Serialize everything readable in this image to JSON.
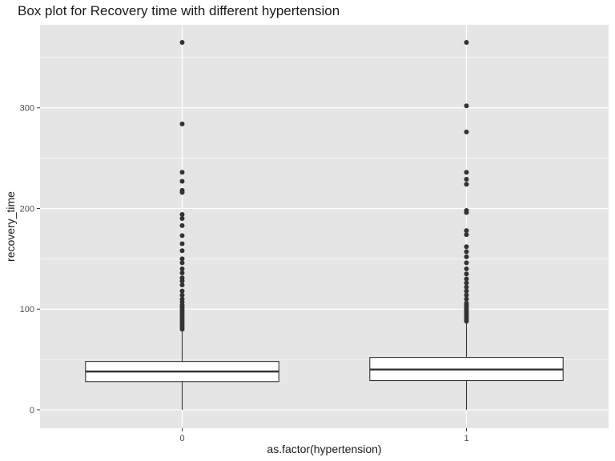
{
  "chart_data": {
    "type": "box",
    "title": "Box plot for Recovery time with different hypertension",
    "xlabel": "as.factor(hypertension)",
    "ylabel": "recovery_time",
    "ylim": [
      -15,
      380
    ],
    "yticks": [
      0,
      100,
      200,
      300
    ],
    "grid": true,
    "legend": "none",
    "colors": {
      "panel": "#e5e5e5",
      "grid": "#ffffff",
      "box_fill": "#ffffff",
      "box_stroke": "#333333",
      "outlier": "#333333"
    },
    "categories": [
      "0",
      "1"
    ],
    "boxes": [
      {
        "category": "0",
        "min": 0,
        "q1": 28,
        "median": 38,
        "q3": 48,
        "whisker_high": 78,
        "outliers": [
          80,
          82,
          84,
          86,
          88,
          90,
          92,
          94,
          96,
          98,
          100,
          102,
          104,
          107,
          110,
          114,
          118,
          124,
          128,
          131,
          136,
          140,
          146,
          150,
          158,
          165,
          173,
          183,
          190,
          194,
          216,
          218,
          227,
          236,
          284,
          365
        ]
      },
      {
        "category": "1",
        "min": 0,
        "q1": 29,
        "median": 40,
        "q3": 52,
        "whisker_high": 86,
        "outliers": [
          88,
          90,
          92,
          94,
          96,
          98,
          100,
          102,
          104,
          106,
          110,
          114,
          118,
          122,
          126,
          130,
          135,
          140,
          146,
          152,
          157,
          162,
          174,
          178,
          196,
          198,
          224,
          229,
          236,
          276,
          302,
          365
        ]
      }
    ]
  }
}
